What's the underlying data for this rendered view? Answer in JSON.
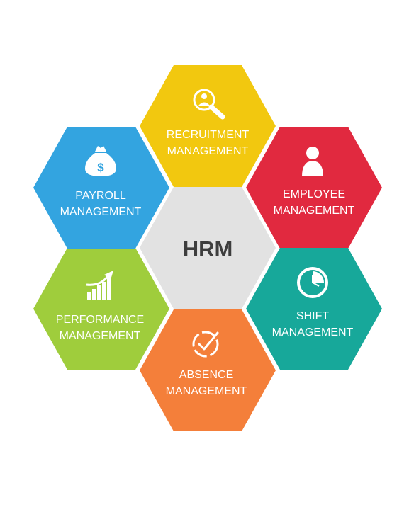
{
  "center": {
    "label": "HRM",
    "color": "#e2e2e2",
    "text_color": "#3d3d3d"
  },
  "modules": [
    {
      "id": "recruitment",
      "line1": "RECRUITMENT",
      "line2": "MANAGEMENT",
      "color": "#f2c80f",
      "icon": "magnifier-person-icon"
    },
    {
      "id": "employee",
      "line1": "EMPLOYEE",
      "line2": "MANAGEMENT",
      "color": "#e1293f",
      "icon": "person-icon"
    },
    {
      "id": "shift",
      "line1": "SHIFT",
      "line2": "MANAGEMENT",
      "color": "#17a89a",
      "icon": "clock-icon"
    },
    {
      "id": "absence",
      "line1": "ABSENCE",
      "line2": "MANAGEMENT",
      "color": "#f47f3a",
      "icon": "clock-check-icon"
    },
    {
      "id": "performance",
      "line1": "PERFORMANCE",
      "line2": "MANAGEMENT",
      "color": "#9fcd3c",
      "icon": "growth-chart-icon"
    },
    {
      "id": "payroll",
      "line1": "PAYROLL",
      "line2": "MANAGEMENT",
      "color": "#33a4e0",
      "icon": "money-bag-icon"
    }
  ]
}
